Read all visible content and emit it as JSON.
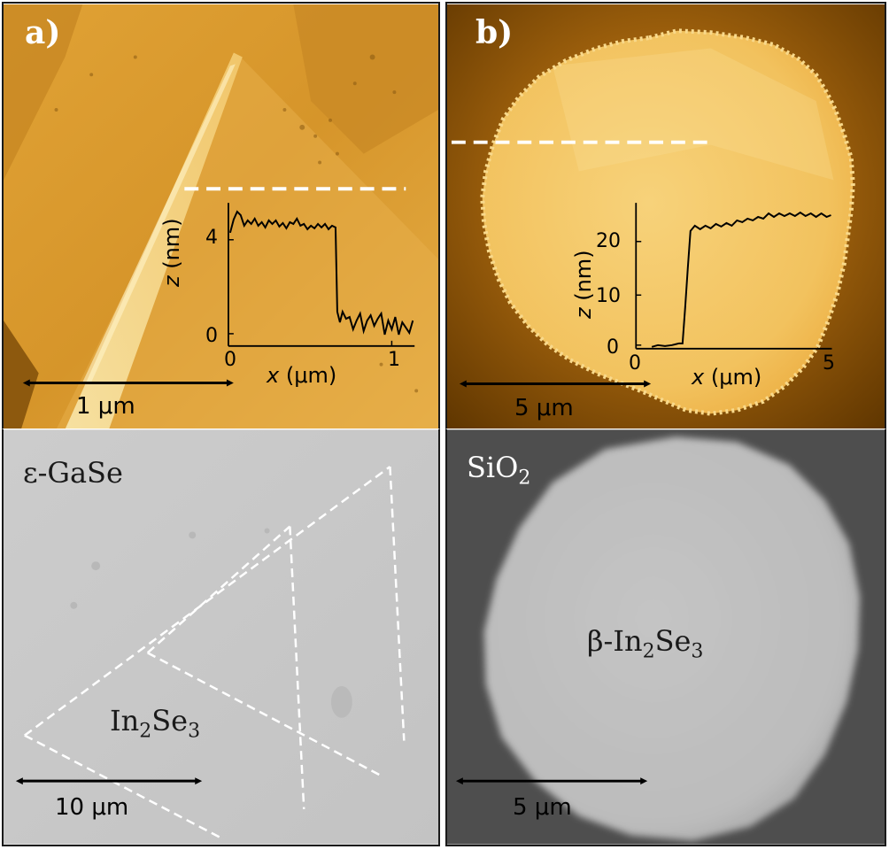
{
  "panel_a": {
    "label": "a)",
    "scale_bar_top": "1 μm",
    "inset": {
      "ylabel_var": "z",
      "ylabel_unit": " (nm)",
      "xlabel_var": "x",
      "xlabel_unit": " (μm)",
      "yticks": [
        "0",
        "4"
      ],
      "xticks": [
        "0",
        "1"
      ]
    },
    "material_top_left": "ε-GaSe",
    "flake_label": {
      "base": "In",
      "sub1": "2",
      "mid": "Se",
      "sub2": "3"
    },
    "scale_bar_bottom": "10 μm"
  },
  "panel_b": {
    "label": "b)",
    "scale_bar_top": "5 μm",
    "inset": {
      "ylabel_var": "z",
      "ylabel_unit": " (nm)",
      "xlabel_var": "x",
      "xlabel_unit": " (μm)",
      "yticks": [
        "0",
        "10",
        "20"
      ],
      "xticks": [
        "0",
        "5"
      ]
    },
    "substrate_label": {
      "base": "SiO",
      "sub": "2"
    },
    "flake_label": {
      "pre": "β-In",
      "sub1": "2",
      "mid": "Se",
      "sub2": "3"
    },
    "scale_bar_bottom": "5 μm"
  },
  "colors": {
    "afm_dark": "#6b3e00",
    "afm_mid": "#d99a2c",
    "afm_light": "#f6d27a",
    "sem_light_gray": "#c9c9c9",
    "sem_dark_gray": "#505050",
    "dashes": "#ffffff"
  }
}
